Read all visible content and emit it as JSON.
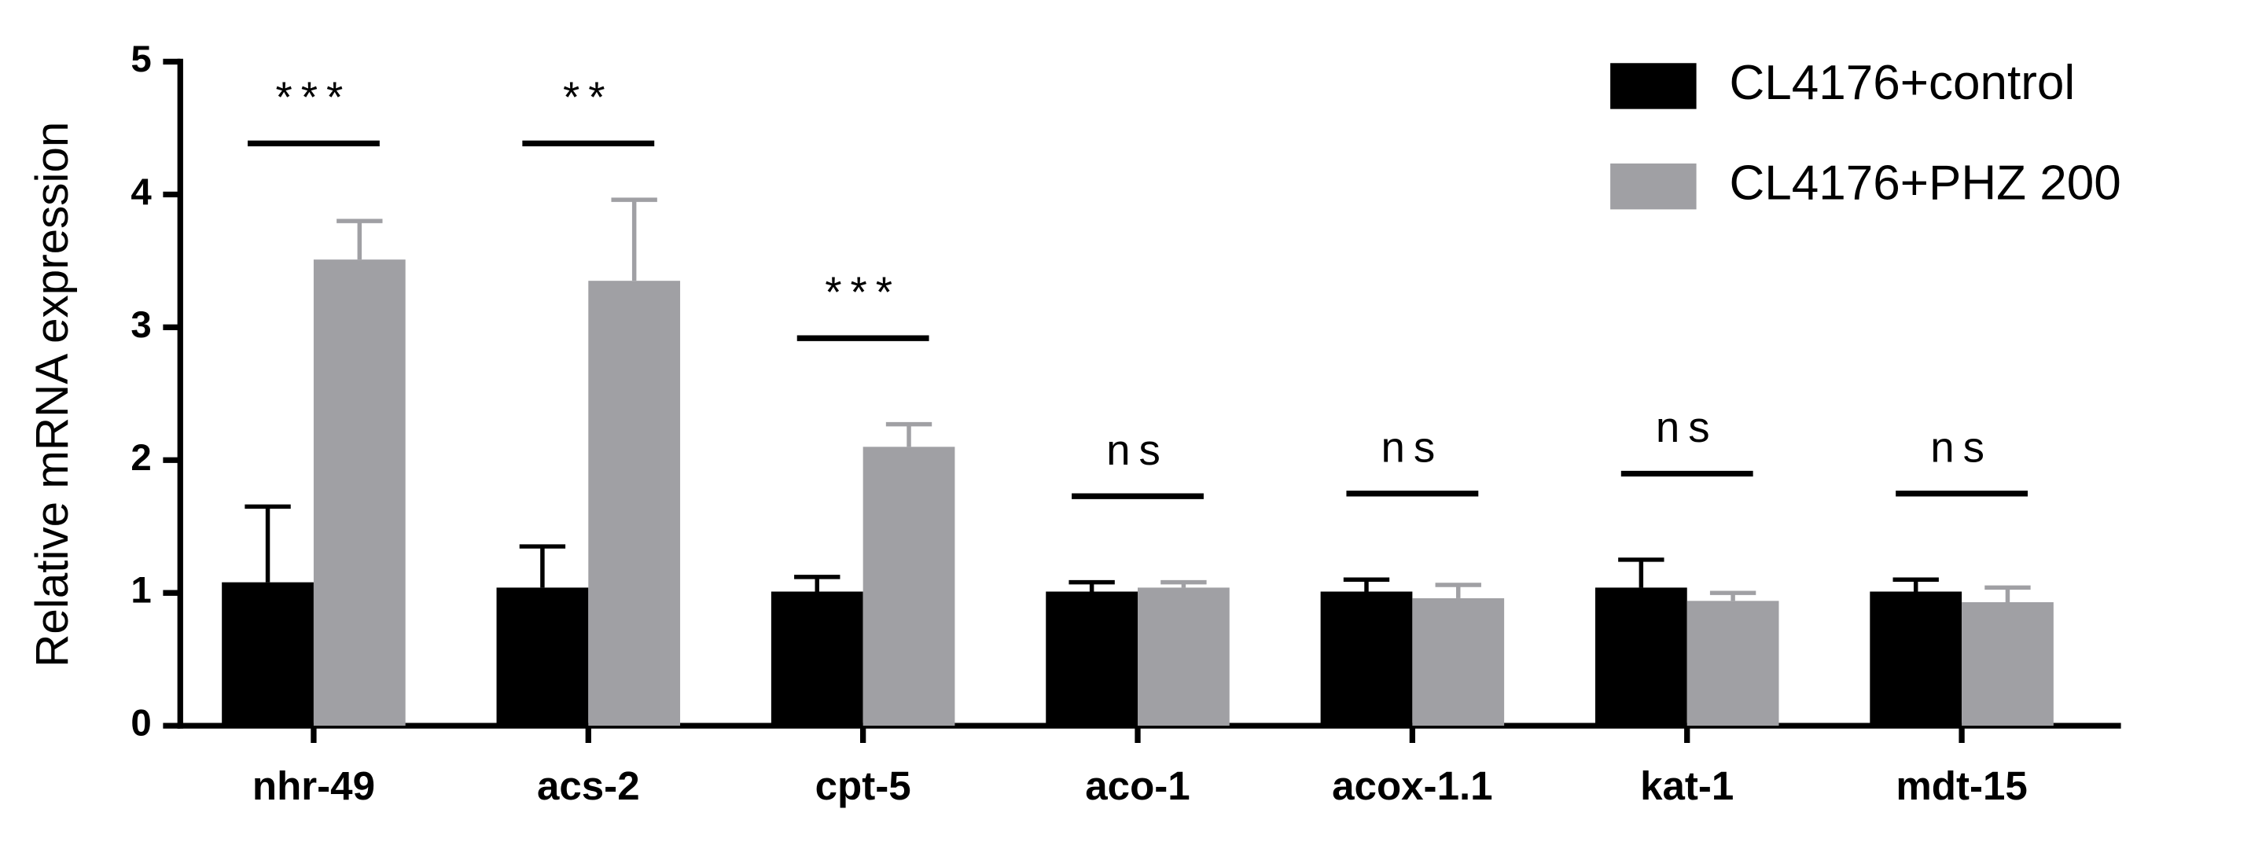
{
  "chart_data": {
    "type": "bar",
    "y_label": "Relative mRNA expression",
    "categories": [
      "nhr-49",
      "acs-2",
      "cpt-5",
      "aco-1",
      "acox-1.1",
      "kat-1",
      "mdt-15"
    ],
    "series": [
      {
        "name": "CL4176+control",
        "color": "#000000",
        "error_color": "#000000",
        "values": [
          1.08,
          1.04,
          1.01,
          1.01,
          1.01,
          1.04,
          1.01
        ],
        "errors": [
          0.57,
          0.31,
          0.11,
          0.07,
          0.09,
          0.21,
          0.09
        ]
      },
      {
        "name": "CL4176+PHZ 200",
        "color": "#a0a0a4",
        "error_color": "#a0a0a4",
        "values": [
          3.51,
          3.35,
          2.1,
          1.04,
          0.96,
          0.94,
          0.93
        ],
        "errors": [
          0.29,
          0.61,
          0.17,
          0.04,
          0.1,
          0.06,
          0.11
        ]
      }
    ],
    "significance": [
      "***",
      "**",
      "***",
      "ns",
      "ns",
      "ns",
      "ns"
    ],
    "ylim": [
      0,
      5
    ],
    "yticks": [
      0,
      1,
      2,
      3,
      4,
      5
    ],
    "grid": false
  }
}
